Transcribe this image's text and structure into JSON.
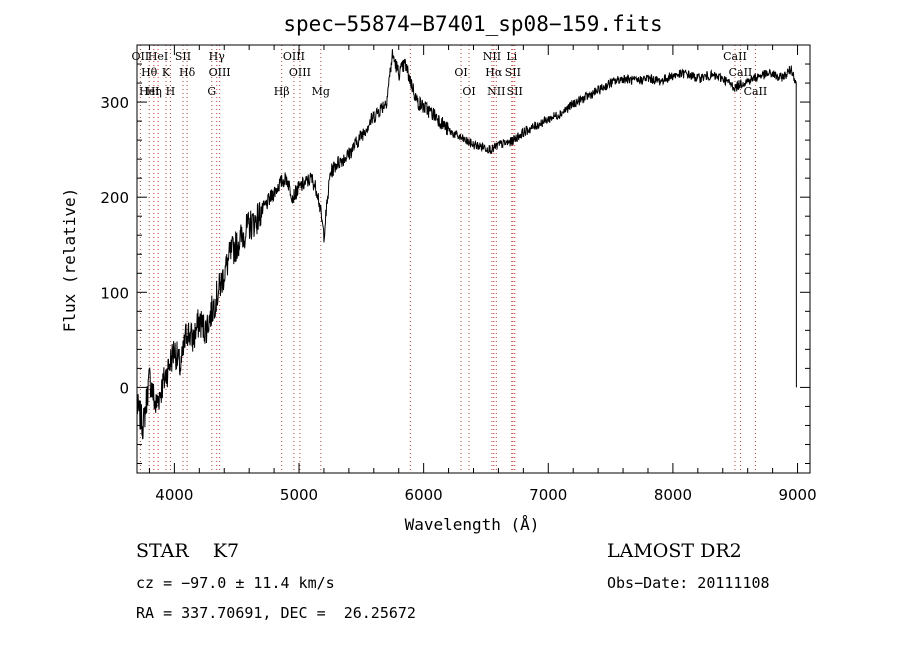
{
  "chart_data": {
    "type": "line",
    "title": "spec−55874−B7401_sp08−159.fits",
    "xlabel": "Wavelength (Å)",
    "ylabel": "Flux (relative)",
    "xlim": [
      3700,
      9100
    ],
    "ylim": [
      -90,
      360
    ],
    "xticks": [
      4000,
      5000,
      6000,
      7000,
      8000,
      9000
    ],
    "yticks": [
      0,
      100,
      200,
      300
    ],
    "grid": false,
    "line_color": "#000000",
    "marker_color": "#c0392b",
    "series": [
      {
        "x": [
          3700,
          3750,
          3800,
          3850,
          3900,
          3950,
          4000,
          4050,
          4100,
          4150,
          4200,
          4250,
          4300,
          4350,
          4400,
          4450,
          4500,
          4550,
          4600,
          4650,
          4700,
          4750,
          4800,
          4850,
          4900,
          4950,
          5000,
          5050,
          5100,
          5150,
          5200,
          5250,
          5300,
          5400,
          5500,
          5600,
          5700,
          5750,
          5800,
          5850,
          5900,
          5950,
          6000,
          6100,
          6200,
          6300,
          6400,
          6500,
          6550,
          6600,
          6700,
          6800,
          6900,
          7000,
          7100,
          7200,
          7300,
          7400,
          7500,
          7600,
          7700,
          7800,
          7900,
          8000,
          8100,
          8200,
          8300,
          8400,
          8500,
          8550,
          8600,
          8700,
          8800,
          8850,
          8900,
          8950,
          8990
        ],
        "y": [
          -20,
          -40,
          10,
          -20,
          0,
          20,
          40,
          20,
          60,
          50,
          70,
          60,
          80,
          100,
          120,
          140,
          150,
          160,
          170,
          175,
          185,
          195,
          205,
          215,
          220,
          200,
          210,
          215,
          220,
          205,
          160,
          225,
          235,
          245,
          265,
          285,
          300,
          350,
          330,
          340,
          320,
          300,
          295,
          285,
          270,
          262,
          255,
          252,
          250,
          255,
          258,
          268,
          275,
          282,
          288,
          298,
          305,
          312,
          320,
          325,
          322,
          325,
          322,
          328,
          330,
          325,
          328,
          325,
          315,
          320,
          322,
          328,
          330,
          325,
          328,
          335,
          320
        ]
      }
    ],
    "lines": [
      {
        "x": 3727,
        "labels": [
          "OII"
        ]
      },
      {
        "x": 3798,
        "labels": [
          "Hθ",
          "HeI"
        ]
      },
      {
        "x": 3835,
        "labels": [
          "Hη"
        ]
      },
      {
        "x": 3869,
        "labels": [
          "HeI"
        ]
      },
      {
        "x": 3933,
        "labels": [
          "K"
        ]
      },
      {
        "x": 3968,
        "labels": [
          "H"
        ]
      },
      {
        "x": 4069,
        "labels": [
          "SII"
        ]
      },
      {
        "x": 4102,
        "labels": [
          "Hδ"
        ]
      },
      {
        "x": 4300,
        "labels": [
          "G"
        ]
      },
      {
        "x": 4340,
        "labels": [
          "Hγ"
        ]
      },
      {
        "x": 4363,
        "labels": [
          "OIII"
        ]
      },
      {
        "x": 4861,
        "labels": [
          "Hβ"
        ]
      },
      {
        "x": 4959,
        "labels": [
          "OIII"
        ]
      },
      {
        "x": 5007,
        "labels": [
          "OIII"
        ]
      },
      {
        "x": 5175,
        "labels": [
          "Mg"
        ]
      },
      {
        "x": 5893,
        "labels": []
      },
      {
        "x": 6300,
        "labels": [
          "OI"
        ]
      },
      {
        "x": 6364,
        "labels": [
          "OI"
        ]
      },
      {
        "x": 6548,
        "labels": [
          "NII"
        ]
      },
      {
        "x": 6563,
        "labels": [
          "Hα"
        ]
      },
      {
        "x": 6583,
        "labels": [
          "NII"
        ]
      },
      {
        "x": 6707,
        "labels": [
          "Li"
        ]
      },
      {
        "x": 6716,
        "labels": [
          "SII"
        ]
      },
      {
        "x": 6731,
        "labels": [
          "SII"
        ]
      },
      {
        "x": 8498,
        "labels": [
          "CaII"
        ]
      },
      {
        "x": 8542,
        "labels": [
          "CaII"
        ]
      },
      {
        "x": 8662,
        "labels": [
          "CaII"
        ]
      }
    ]
  },
  "info": {
    "object": "STAR    K7",
    "survey": "LAMOST DR2",
    "cz": "cz = −97.0 ± 11.4 km/s",
    "obs_date": "Obs−Date: 20111108",
    "coords": "RA = 337.70691, DEC =  26.25672"
  }
}
